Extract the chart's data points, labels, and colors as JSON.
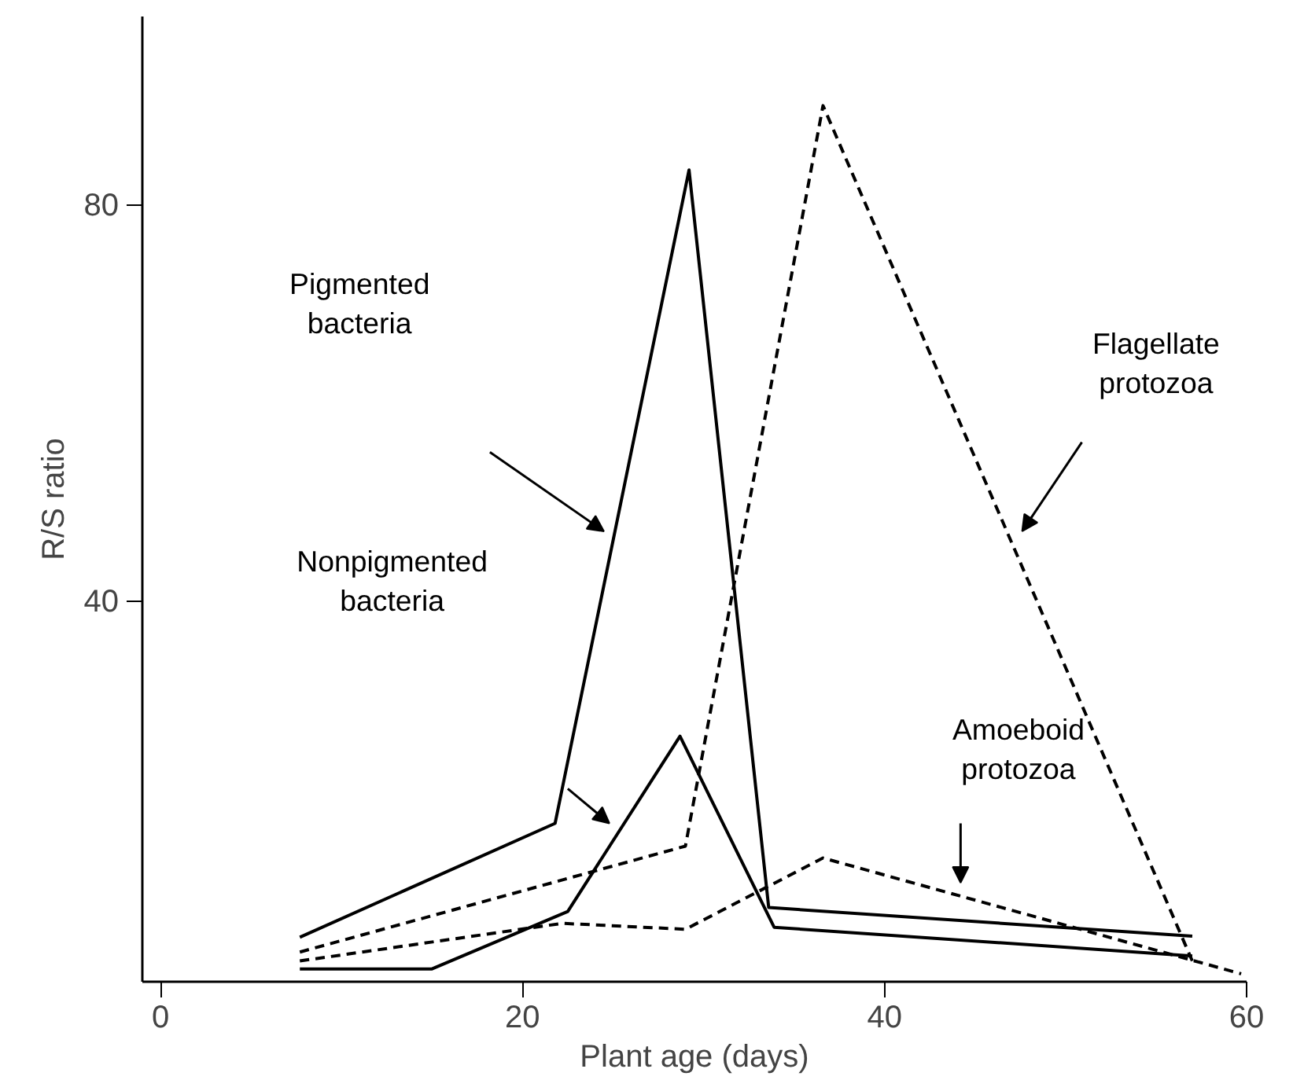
{
  "chart_data": {
    "type": "line",
    "xlabel": "Plant age (days)",
    "ylabel": "R/S ratio",
    "xlim": [
      -1,
      60
    ],
    "ylim": [
      1.5,
      99
    ],
    "xticks": [
      0,
      20,
      40,
      60
    ],
    "yticks": [
      40,
      80
    ],
    "grid": false,
    "marker": "none",
    "series": [
      {
        "color": "#000000",
        "line_style": "solid",
        "x": [
          7.7,
          21.8,
          29.2,
          33.6,
          57
        ],
        "values": [
          6,
          17.5,
          83.5,
          9,
          6.1
        ]
      },
      {
        "color": "#000000",
        "line_style": "solid",
        "x": [
          7.7,
          15,
          22.5,
          28.7,
          33.9,
          57
        ],
        "values": [
          2.8,
          2.8,
          8.6,
          26.3,
          7,
          4.1
        ]
      },
      {
        "color": "#000000",
        "line_style": "dashed",
        "x": [
          7.7,
          29,
          36.6,
          57
        ],
        "values": [
          4.5,
          15.2,
          90,
          3.6
        ]
      },
      {
        "color": "#000000",
        "line_style": "dashed",
        "x": [
          7.7,
          22.2,
          29,
          36.6,
          59.7
        ],
        "values": [
          3.6,
          7.4,
          6.8,
          14,
          2.3
        ]
      }
    ],
    "annotations": [
      "Pigmented\nbacteria",
      "Nonpigmented\nbacteria",
      "Flagellate\nprotozoa",
      "Amoeboid\nprotozoa"
    ]
  }
}
